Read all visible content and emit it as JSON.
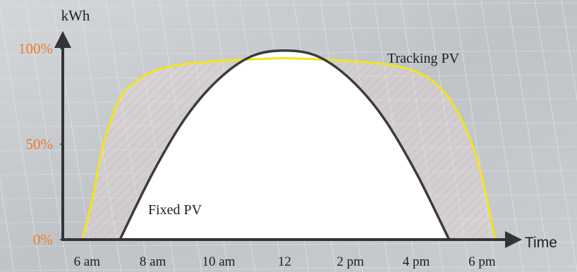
{
  "colors": {
    "background": "#c3c6ca",
    "axis": "#333438",
    "fixed_line": "#3b3b3f",
    "fixed_fill": "#ffffff",
    "tracking_line": "#f3e41c",
    "hatch": "#f0a3a8",
    "percent_label": "#f07a28",
    "text": "#1e1e1e"
  },
  "chart_data": {
    "type": "area",
    "xlabel": "Time",
    "ylabel": "kWh",
    "x_ticks": [
      {
        "value": 6,
        "label": "6 am"
      },
      {
        "value": 8,
        "label": "8 am"
      },
      {
        "value": 10,
        "label": "10 am"
      },
      {
        "value": 12,
        "label": "12"
      },
      {
        "value": 14,
        "label": "2 pm"
      },
      {
        "value": 16,
        "label": "4 pm"
      },
      {
        "value": 18,
        "label": "6 pm"
      }
    ],
    "y_ticks": [
      {
        "value": 0,
        "label": "0%"
      },
      {
        "value": 50,
        "label": "50%"
      },
      {
        "value": 100,
        "label": "100%"
      }
    ],
    "xlim": [
      5.2,
      19.0
    ],
    "ylim": [
      0,
      100
    ],
    "series": [
      {
        "name": "Tracking PV",
        "x": [
          5.85,
          6.15,
          6.5,
          7.0,
          7.5,
          8.0,
          8.5,
          9.0,
          10.0,
          11.0,
          12.0,
          13.0,
          14.0,
          15.0,
          15.5,
          16.0,
          16.5,
          17.0,
          17.4,
          17.8,
          18.1,
          18.4
        ],
        "values": [
          0,
          20,
          50,
          74,
          83,
          88,
          90.5,
          92,
          93.5,
          94.4,
          95,
          94.4,
          93.5,
          92,
          90.5,
          88,
          83,
          74,
          62,
          45,
          25,
          0
        ]
      },
      {
        "name": "Fixed PV",
        "x": [
          7.0,
          8.0,
          9.0,
          10.0,
          11.0,
          12.0,
          13.0,
          14.0,
          15.0,
          16.0,
          17.0
        ],
        "values": [
          0,
          35,
          64,
          84,
          96,
          99,
          96,
          84,
          64,
          35,
          0
        ]
      }
    ]
  }
}
